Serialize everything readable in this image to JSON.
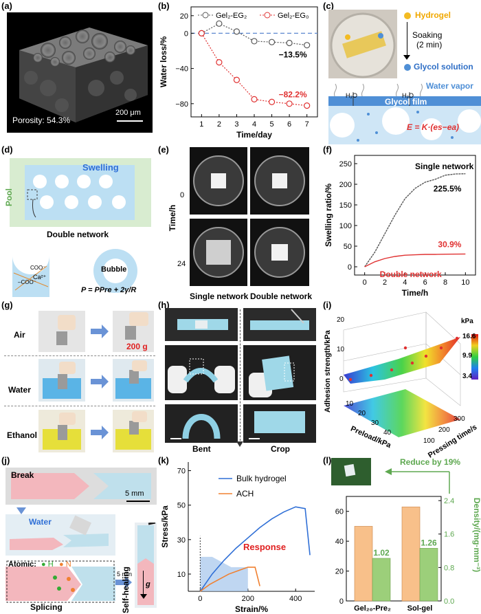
{
  "panel_labels": {
    "a": "(a)",
    "b": "(b)",
    "c": "(c)",
    "d": "(d)",
    "e": "(e)",
    "f": "(f)",
    "g": "(g)",
    "h": "(h)",
    "i": "(i)",
    "j": "(j)",
    "k": "(k)",
    "l": "(l)"
  },
  "panel_a": {
    "porosity": "Porosity: 54.3%",
    "scalebar": "200 μm"
  },
  "panel_c": {
    "hydrogel": "Hydrogel",
    "soaking": "Soaking",
    "soak_time": "(2 min)",
    "glycol_solution": "Glycol solution",
    "water_vapor": "Water vapor",
    "glycol_film": "Glycol film",
    "h2o_left": "H₂O",
    "h2o_right": "H₂O",
    "equation": "E = K·(es−ea)"
  },
  "panel_d": {
    "pool": "Pool",
    "swelling": "Swelling",
    "double_network": "Double network",
    "coo1": "COO⁻",
    "coo2": "–COO⁻",
    "ca": "Ca²⁺",
    "bubble": "Bubble",
    "equation": "P = PPre + 2γ/R"
  },
  "panel_e": {
    "ylabel": "Time/h",
    "row0": "0",
    "row24": "24",
    "col1": "Single network",
    "col2": "Double network"
  },
  "panel_g": {
    "rows": [
      "Air",
      "Water",
      "Ethanol"
    ],
    "weight": "200 g"
  },
  "panel_h": {
    "bent": "Bent",
    "crop": "Crop"
  },
  "panel_i": {
    "zlabel": "Adhesion strength/kPa",
    "xlabel": "Preload/kPa",
    "ylabel": "Pressing time/s",
    "cbar_title": "kPa",
    "cbar_ticks": [
      "16.6",
      "9.9",
      "3.4"
    ],
    "z_ticks": [
      "20",
      "10",
      "0"
    ],
    "x_ticks": [
      "10",
      "20",
      "30",
      "40"
    ],
    "y_ticks": [
      "100",
      "200",
      "300"
    ]
  },
  "panel_j": {
    "break": "Break",
    "scalebar": "5 mm",
    "water": "Water",
    "atomic": "Atomic:",
    "h": "H",
    "n": "N",
    "time": "5 min",
    "splicing": "Splicing",
    "self_healing": "Self-healing",
    "g": "g"
  },
  "chart_data": [
    {
      "panel": "b",
      "type": "line",
      "xlabel": "Time/day",
      "ylabel": "Water loss/%",
      "x": [
        1,
        2,
        3,
        4,
        5,
        6,
        7
      ],
      "xticks": [
        "1",
        "2",
        "3",
        "4",
        "5",
        "6",
        "7"
      ],
      "yticks": [
        "20",
        "0",
        "−40",
        "−80"
      ],
      "ylim": [
        -95,
        30
      ],
      "series": [
        {
          "name": "Gel₂-EG₂",
          "color": "#555555",
          "values": [
            0,
            11,
            2,
            -9,
            -10,
            -11,
            -13.5
          ],
          "label": "−13.5%"
        },
        {
          "name": "Gel₂-EG₀",
          "color": "#e03030",
          "values": [
            0,
            -33,
            -53,
            -75,
            -78,
            -80,
            -82.2
          ],
          "label": "−82.2%"
        }
      ]
    },
    {
      "panel": "f",
      "type": "line",
      "xlabel": "Time/h",
      "ylabel": "Swelling ratio/%",
      "xticks": [
        "0",
        "2",
        "4",
        "6",
        "8",
        "10"
      ],
      "yticks": [
        "0",
        "50",
        "100",
        "150",
        "200",
        "250"
      ],
      "xlim": [
        -1,
        11
      ],
      "ylim": [
        -20,
        270
      ],
      "series": [
        {
          "name": "Single network",
          "color": "#555555",
          "x": [
            0,
            1,
            2,
            3,
            4,
            5,
            6,
            7,
            8,
            9,
            10
          ],
          "values": [
            0,
            35,
            80,
            125,
            165,
            190,
            205,
            212,
            222,
            225,
            225.5
          ],
          "label": "225.5%"
        },
        {
          "name": "Double network",
          "color": "#e03030",
          "x": [
            0,
            1,
            2,
            3,
            4,
            5,
            6,
            7,
            8,
            9,
            10
          ],
          "values": [
            0,
            12,
            20,
            25,
            28,
            29,
            30,
            30,
            30.5,
            30.8,
            30.9
          ],
          "label": "30.9%"
        }
      ]
    },
    {
      "panel": "k",
      "type": "line",
      "xlabel": "Strain/%",
      "ylabel": "Stress/kPa",
      "xticks": [
        "0",
        "200",
        "400"
      ],
      "yticks": [
        "10",
        "30",
        "50",
        "70"
      ],
      "xlim": [
        -50,
        480
      ],
      "ylim": [
        0,
        75
      ],
      "annotation": "Response",
      "series": [
        {
          "name": "Bulk hydrogel",
          "color": "#2f6fd6",
          "x": [
            0,
            50,
            100,
            150,
            200,
            250,
            300,
            350,
            400,
            440,
            460
          ],
          "values": [
            0,
            10,
            18,
            25,
            31,
            37,
            42,
            46,
            49,
            48,
            21
          ]
        },
        {
          "name": "ACH",
          "color": "#f08030",
          "x": [
            0,
            40,
            80,
            120,
            160,
            200,
            230,
            250
          ],
          "values": [
            0,
            4,
            7,
            10,
            12,
            14,
            14,
            3
          ]
        }
      ]
    },
    {
      "panel": "l",
      "type": "bar",
      "ylabel_right": "Density/(mg·mm⁻³)",
      "categories": [
        "Gel₂₀-Pre₂",
        "Sol-gel"
      ],
      "yticks_left": [
        "0",
        "20",
        "40",
        "60"
      ],
      "yticks_right": [
        "0.0",
        "0.8",
        "1.6",
        "2.4"
      ],
      "ylim_left": [
        0,
        70
      ],
      "ylim_right": [
        0,
        2.5
      ],
      "series": [
        {
          "name": "left",
          "color": "#f8c08a",
          "axis": "left",
          "values": [
            50,
            63
          ]
        },
        {
          "name": "Density",
          "color": "#9ccf7a",
          "axis": "right",
          "values": [
            1.02,
            1.26
          ],
          "labels": [
            "1.02",
            "1.26"
          ]
        }
      ],
      "annotation": "Reduce by 19%"
    }
  ]
}
